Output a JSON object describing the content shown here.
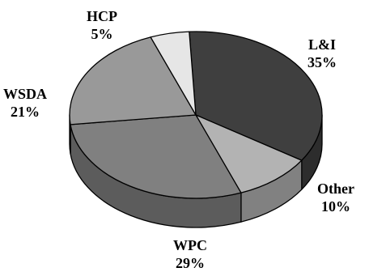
{
  "chart_data": {
    "type": "pie",
    "title": "",
    "style": "3d",
    "slices": [
      {
        "label": "L&I",
        "value": 35,
        "value_label": "35%",
        "color": "#3f3f3f"
      },
      {
        "label": "Other",
        "value": 10,
        "value_label": "10%",
        "color": "#b3b3b3"
      },
      {
        "label": "WPC",
        "value": 29,
        "value_label": "29%",
        "color": "#808080"
      },
      {
        "label": "WSDA",
        "value": 21,
        "value_label": "21%",
        "color": "#999999"
      },
      {
        "label": "HCP",
        "value": 5,
        "value_label": "5%",
        "color": "#e6e6e6"
      }
    ]
  }
}
